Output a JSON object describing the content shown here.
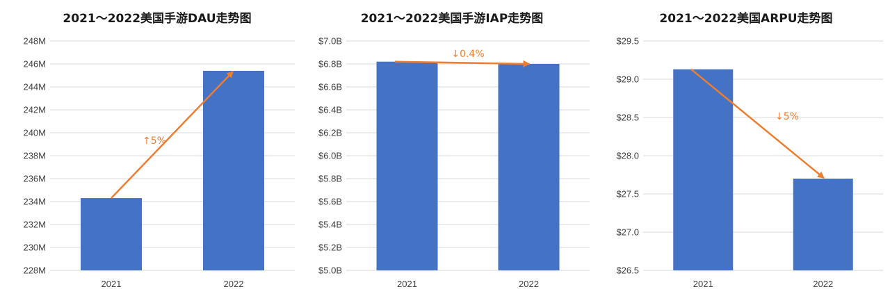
{
  "colors": {
    "bar": "#4472C4",
    "arrow": "#ED7D31",
    "grid": "#d9d9d9",
    "text": "#404040"
  },
  "chart_data": [
    {
      "type": "bar",
      "title": "2021～2022美国手游DAU走势图",
      "categories": [
        "2021",
        "2022"
      ],
      "values": [
        234.3,
        245.4
      ],
      "ylim": [
        228,
        248
      ],
      "yticks": [
        228,
        230,
        232,
        234,
        236,
        238,
        240,
        242,
        244,
        246,
        248
      ],
      "ytick_labels": [
        "228M",
        "230M",
        "232M",
        "234M",
        "236M",
        "238M",
        "240M",
        "242M",
        "244M",
        "246M",
        "248M"
      ],
      "annotation": "↑5%",
      "arrow_direction": "up",
      "grid": true
    },
    {
      "type": "bar",
      "title": "2021～2022美国手游IAP走势图",
      "categories": [
        "2021",
        "2022"
      ],
      "values": [
        6.82,
        6.8
      ],
      "ylim": [
        5.0,
        7.0
      ],
      "yticks": [
        5.0,
        5.2,
        5.4,
        5.6,
        5.8,
        6.0,
        6.2,
        6.4,
        6.6,
        6.8,
        7.0
      ],
      "ytick_labels": [
        "$5.0B",
        "$5.2B",
        "$5.4B",
        "$5.6B",
        "$5.8B",
        "$6.0B",
        "$6.2B",
        "$6.4B",
        "$6.6B",
        "$6.8B",
        "$7.0B"
      ],
      "annotation": "↓0.4%",
      "arrow_direction": "down",
      "grid": true
    },
    {
      "type": "bar",
      "title": "2021～2022美国ARPU走势图",
      "categories": [
        "2021",
        "2022"
      ],
      "values": [
        29.13,
        27.7
      ],
      "ylim": [
        26.5,
        29.5
      ],
      "yticks": [
        26.5,
        27.0,
        27.5,
        28.0,
        28.5,
        29.0,
        29.5
      ],
      "ytick_labels": [
        "$26.5",
        "$27.0",
        "$27.5",
        "$28.0",
        "$28.5",
        "$29.0",
        "$29.5"
      ],
      "annotation": "↓5%",
      "arrow_direction": "down",
      "grid": true
    }
  ]
}
